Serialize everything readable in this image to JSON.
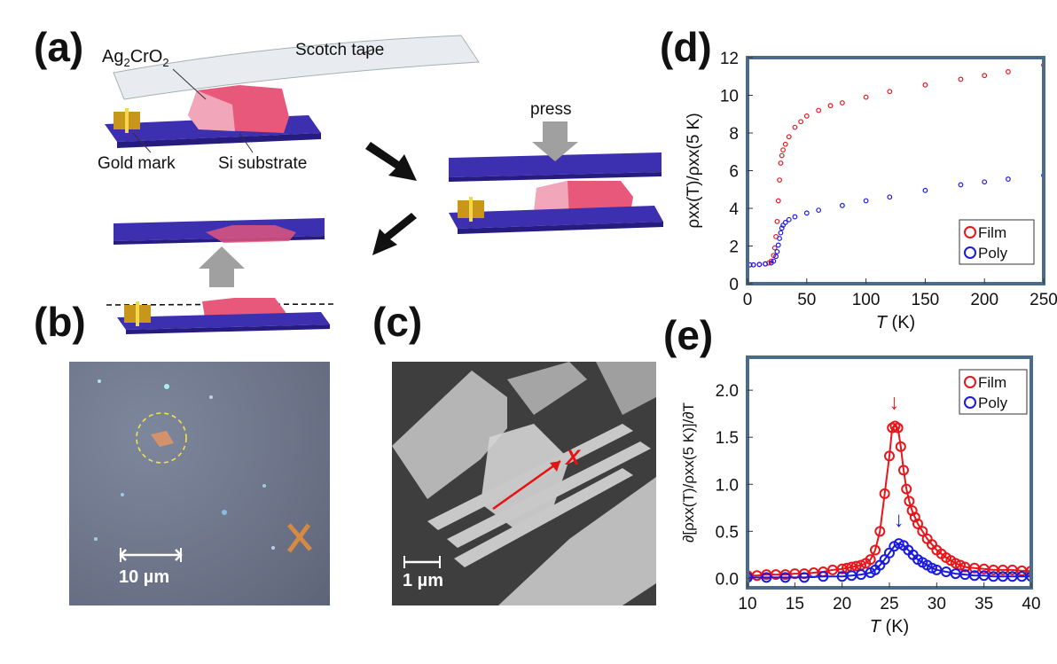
{
  "panels": {
    "a": {
      "label": "(a)",
      "material": "Ag2CrO2",
      "material_parts": [
        "Ag",
        "2",
        "CrO",
        "2"
      ],
      "tape": "Scotch tape",
      "gold": "Gold mark",
      "substrate": "Si substrate",
      "press": "press"
    },
    "b": {
      "label": "(b)",
      "scale": "10 µm"
    },
    "c": {
      "label": "(c)",
      "scale": "1 µm",
      "axis": "X"
    },
    "d": {
      "label": "(d)"
    },
    "e": {
      "label": "(e)"
    }
  },
  "colors": {
    "film": "#e8151b",
    "poly": "#1a1adf",
    "frame": "#4a6b8a",
    "substrate": "#3c2fb0",
    "crystal": "#e8587a",
    "gold": "#c8961a",
    "arrow": "#a0a0a0"
  },
  "chart_data": [
    {
      "type": "scatter",
      "panel": "d",
      "title": "",
      "xlabel": "T (K)",
      "ylabel": "ρxx(T)/ρxx(5 K)",
      "xlim": [
        0,
        250
      ],
      "ylim": [
        0,
        12
      ],
      "xticks": [
        0,
        50,
        100,
        150,
        200,
        250
      ],
      "yticks": [
        0,
        2,
        4,
        6,
        8,
        10,
        12
      ],
      "legend_position": "bottom-right",
      "series": [
        {
          "name": "Film",
          "color": "#e8151b",
          "x": [
            2,
            5,
            10,
            15,
            18,
            20,
            22,
            23,
            24,
            25,
            26,
            27,
            28,
            29,
            30,
            32,
            35,
            40,
            45,
            50,
            60,
            70,
            80,
            100,
            120,
            150,
            180,
            200,
            220,
            250
          ],
          "y": [
            1.0,
            1.0,
            1.02,
            1.05,
            1.1,
            1.2,
            1.5,
            1.9,
            2.5,
            3.3,
            4.4,
            5.5,
            6.4,
            6.8,
            7.1,
            7.4,
            7.8,
            8.3,
            8.6,
            8.9,
            9.2,
            9.45,
            9.6,
            9.9,
            10.2,
            10.55,
            10.85,
            11.05,
            11.25,
            11.6
          ]
        },
        {
          "name": "Poly",
          "color": "#1a1adf",
          "x": [
            2,
            5,
            10,
            15,
            20,
            22,
            24,
            25,
            26,
            27,
            28,
            29,
            30,
            32,
            35,
            40,
            50,
            60,
            80,
            100,
            120,
            150,
            180,
            200,
            220,
            250
          ],
          "y": [
            1.0,
            1.0,
            1.02,
            1.05,
            1.1,
            1.2,
            1.45,
            1.7,
            2.05,
            2.4,
            2.7,
            2.95,
            3.1,
            3.25,
            3.4,
            3.55,
            3.75,
            3.9,
            4.15,
            4.4,
            4.6,
            4.95,
            5.25,
            5.4,
            5.55,
            5.75
          ]
        }
      ]
    },
    {
      "type": "line",
      "panel": "e",
      "title": "",
      "xlabel": "T (K)",
      "ylabel": "∂[ρxx(T)/ρxx(5 K)]/∂T",
      "xlim": [
        10,
        40
      ],
      "ylim": [
        -0.1,
        2.35
      ],
      "xticks": [
        10,
        15,
        20,
        25,
        30,
        35,
        40
      ],
      "yticks": [
        0.0,
        0.5,
        1.0,
        1.5,
        2.0
      ],
      "legend_position": "top-right",
      "annotations": [
        {
          "text": "↓",
          "x": 25.5,
          "y": 1.8,
          "series": "Film"
        },
        {
          "text": "↓",
          "x": 26.0,
          "y": 0.55,
          "series": "Poly"
        }
      ],
      "series": [
        {
          "name": "Film",
          "color": "#e8151b",
          "x": [
            10,
            11,
            12,
            13,
            14,
            15,
            16,
            17,
            18,
            19,
            20,
            20.5,
            21,
            21.5,
            22,
            22.5,
            23,
            23.5,
            24,
            24.5,
            25,
            25.3,
            25.6,
            25.9,
            26.2,
            26.5,
            26.8,
            27.1,
            27.4,
            27.7,
            28,
            28.5,
            29,
            29.5,
            30,
            30.5,
            31,
            31.5,
            32,
            32.5,
            33,
            34,
            35,
            36,
            37,
            38,
            39,
            40
          ],
          "y": [
            0.03,
            0.03,
            0.04,
            0.04,
            0.04,
            0.05,
            0.05,
            0.06,
            0.07,
            0.09,
            0.1,
            0.11,
            0.12,
            0.13,
            0.14,
            0.16,
            0.2,
            0.3,
            0.5,
            0.9,
            1.3,
            1.6,
            1.62,
            1.6,
            1.4,
            1.15,
            0.95,
            0.82,
            0.72,
            0.65,
            0.58,
            0.5,
            0.42,
            0.36,
            0.3,
            0.26,
            0.22,
            0.19,
            0.16,
            0.14,
            0.12,
            0.11,
            0.1,
            0.09,
            0.09,
            0.09,
            0.08,
            0.08
          ]
        },
        {
          "name": "Poly",
          "color": "#1a1adf",
          "x": [
            10,
            12,
            14,
            16,
            18,
            20,
            21,
            22,
            23,
            23.5,
            24,
            24.5,
            25,
            25.5,
            26,
            26.5,
            27,
            27.5,
            28,
            28.5,
            29,
            29.5,
            30,
            31,
            32,
            33,
            34,
            35,
            36,
            37,
            38,
            39,
            40
          ],
          "y": [
            0.01,
            0.01,
            0.01,
            0.01,
            0.02,
            0.02,
            0.03,
            0.04,
            0.06,
            0.09,
            0.14,
            0.2,
            0.27,
            0.34,
            0.37,
            0.35,
            0.3,
            0.25,
            0.2,
            0.17,
            0.14,
            0.11,
            0.09,
            0.07,
            0.05,
            0.04,
            0.03,
            0.03,
            0.02,
            0.02,
            0.02,
            0.02,
            0.02
          ]
        }
      ]
    }
  ]
}
